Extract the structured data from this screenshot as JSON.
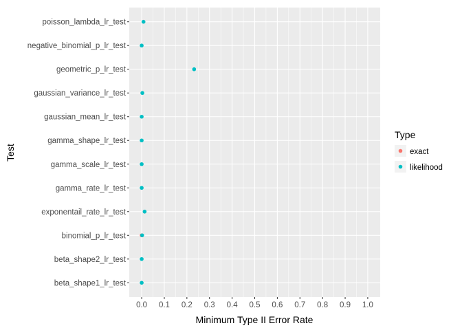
{
  "chart_data": {
    "type": "scatter",
    "xlabel": "Minimum Type II Error Rate",
    "ylabel": "Test",
    "xlim": [
      -0.055,
      1.055
    ],
    "x_ticks": [
      0.0,
      0.1,
      0.2,
      0.3,
      0.4,
      0.5,
      0.6,
      0.7,
      0.8,
      0.9,
      1.0
    ],
    "x_tick_labels": [
      "0.0",
      "0.1",
      "0.2",
      "0.3",
      "0.4",
      "0.5",
      "0.6",
      "0.7",
      "0.8",
      "0.9",
      "1.0"
    ],
    "categories": [
      "beta_shape1_lr_test",
      "beta_shape2_lr_test",
      "binomial_p_lr_test",
      "exponentail_rate_lr_test",
      "gamma_rate_lr_test",
      "gamma_scale_lr_test",
      "gamma_shape_lr_test",
      "gaussian_mean_lr_test",
      "gaussian_variance_lr_test",
      "geometric_p_lr_test",
      "negative_binomial_p_lr_test",
      "poisson_lambda_lr_test"
    ],
    "grid": true,
    "legend_position": "right",
    "legend": {
      "title": "Type",
      "entries": [
        {
          "label": "exact",
          "color": "#F8766D"
        },
        {
          "label": "likelihood",
          "color": "#00BFC4"
        }
      ]
    },
    "series": [
      {
        "name": "exact",
        "color": "#F8766D",
        "points": [
          {
            "category": "binomial_p_lr_test",
            "x": 0.0
          }
        ]
      },
      {
        "name": "likelihood",
        "color": "#00BFC4",
        "points": [
          {
            "category": "beta_shape1_lr_test",
            "x": 0.0
          },
          {
            "category": "beta_shape2_lr_test",
            "x": 0.0
          },
          {
            "category": "binomial_p_lr_test",
            "x": 0.002
          },
          {
            "category": "exponentail_rate_lr_test",
            "x": 0.013
          },
          {
            "category": "gamma_rate_lr_test",
            "x": 0.0
          },
          {
            "category": "gamma_scale_lr_test",
            "x": 0.0
          },
          {
            "category": "gamma_shape_lr_test",
            "x": 0.0
          },
          {
            "category": "gaussian_mean_lr_test",
            "x": 0.0
          },
          {
            "category": "gaussian_variance_lr_test",
            "x": 0.003
          },
          {
            "category": "geometric_p_lr_test",
            "x": 0.232
          },
          {
            "category": "negative_binomial_p_lr_test",
            "x": 0.0
          },
          {
            "category": "poisson_lambda_lr_test",
            "x": 0.008
          }
        ]
      }
    ]
  },
  "colors": {
    "panel_background": "#EBEBEB",
    "grid_major": "#FFFFFF",
    "tick_text": "#4D4D4D"
  }
}
